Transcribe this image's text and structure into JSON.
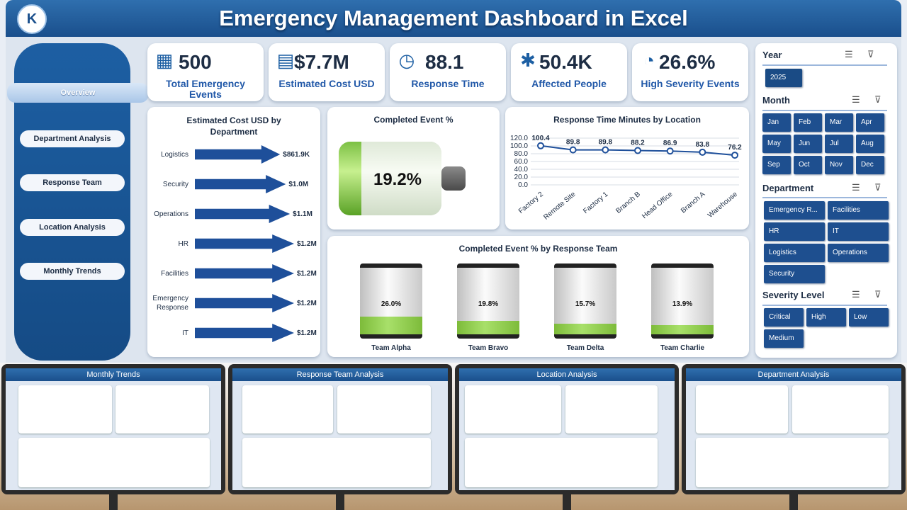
{
  "header": {
    "title": "Emergency Management Dashboard in Excel",
    "logo_text": "K"
  },
  "nav": {
    "items": [
      {
        "label": "Overview"
      },
      {
        "label": "Department Analysis"
      },
      {
        "label": "Response Team"
      },
      {
        "label": "Location Analysis"
      },
      {
        "label": "Monthly Trends"
      }
    ]
  },
  "kpis": [
    {
      "value": "500",
      "label": "Total Emergency Events",
      "icon": "calendar-icon"
    },
    {
      "value": "$7.7M",
      "label": "Estimated Cost USD",
      "icon": "calculator-icon"
    },
    {
      "value": "88.1",
      "label": "Response Time",
      "icon": "clock-icon"
    },
    {
      "value": "50.4K",
      "label": "Affected People",
      "icon": "people-network-icon"
    },
    {
      "value": "26.6%",
      "label": "High Severity Events",
      "icon": "gauge-icon"
    }
  ],
  "cost_chart": {
    "title": "Estimated Cost USD by Department",
    "rows": [
      {
        "label": "Logistics",
        "value": "$861.9K",
        "v": 861.9
      },
      {
        "label": "Security",
        "value": "$1.0M",
        "v": 1000
      },
      {
        "label": "Operations",
        "value": "$1.1M",
        "v": 1100
      },
      {
        "label": "HR",
        "value": "$1.2M",
        "v": 1200
      },
      {
        "label": "Facilities",
        "value": "$1.2M",
        "v": 1200
      },
      {
        "label": "Emergency Response",
        "value": "$1.2M",
        "v": 1200
      },
      {
        "label": "IT",
        "value": "$1.2M",
        "v": 1200
      }
    ]
  },
  "completed": {
    "title": "Completed Event %",
    "value": "19.2%",
    "v": 19.2
  },
  "response_chart": {
    "title": "Response Time Minutes by Location"
  },
  "team_chart": {
    "title": "Completed Event % by Response Team",
    "teams": [
      {
        "name": "Team Alpha",
        "value": "26.0%",
        "v": 26.0
      },
      {
        "name": "Team Bravo",
        "value": "19.8%",
        "v": 19.8
      },
      {
        "name": "Team Delta",
        "value": "15.7%",
        "v": 15.7
      },
      {
        "name": "Team Charlie",
        "value": "13.9%",
        "v": 13.9
      }
    ]
  },
  "chart_data": {
    "type": "line",
    "title": "Response Time Minutes by Location",
    "categories": [
      "Factory 2",
      "Remote Site",
      "Factory 1",
      "Branch B",
      "Head Office",
      "Branch A",
      "Warehouse"
    ],
    "values": [
      100.4,
      89.8,
      89.8,
      88.2,
      86.9,
      83.8,
      76.2
    ],
    "labels": [
      "100.4",
      "89.8",
      "89.8",
      "88.2",
      "86.9",
      "83.8",
      "76.2"
    ],
    "ylim": [
      0,
      120
    ],
    "yticks": [
      "120.0",
      "100.0",
      "80.0",
      "60.0",
      "40.0",
      "20.0",
      "0.0"
    ]
  },
  "filters": {
    "year": {
      "title": "Year",
      "options": [
        "2025"
      ]
    },
    "month": {
      "title": "Month",
      "options": [
        "Jan",
        "Feb",
        "Mar",
        "Apr",
        "May",
        "Jun",
        "Jul",
        "Aug",
        "Sep",
        "Oct",
        "Nov",
        "Dec"
      ]
    },
    "department": {
      "title": "Department",
      "options": [
        "Emergency R...",
        "Facilities",
        "HR",
        "IT",
        "Logistics",
        "Operations",
        "Security"
      ]
    },
    "severity": {
      "title": "Severity Level",
      "options": [
        "Critical",
        "High",
        "Low",
        "Medium"
      ]
    }
  },
  "previews": [
    {
      "title": "Monthly Trends"
    },
    {
      "title": "Response Team Analysis"
    },
    {
      "title": "Location Analysis"
    },
    {
      "title": "Department Analysis"
    }
  ]
}
